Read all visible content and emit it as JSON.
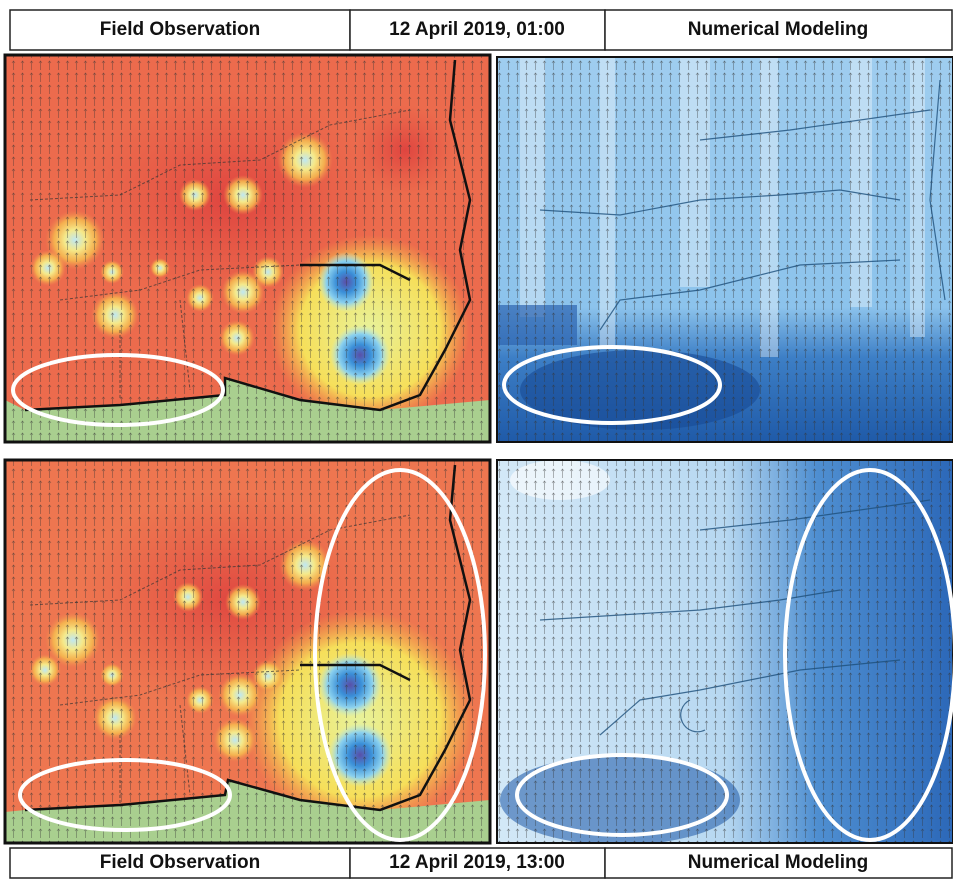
{
  "header_top": {
    "left": "Field Observation",
    "center": "12 April 2019, 01:00",
    "right": "Numerical Modeling"
  },
  "header_bottom": {
    "left": "Field Observation",
    "center": "12 April 2019, 13:00",
    "right": "Numerical Modeling"
  }
}
